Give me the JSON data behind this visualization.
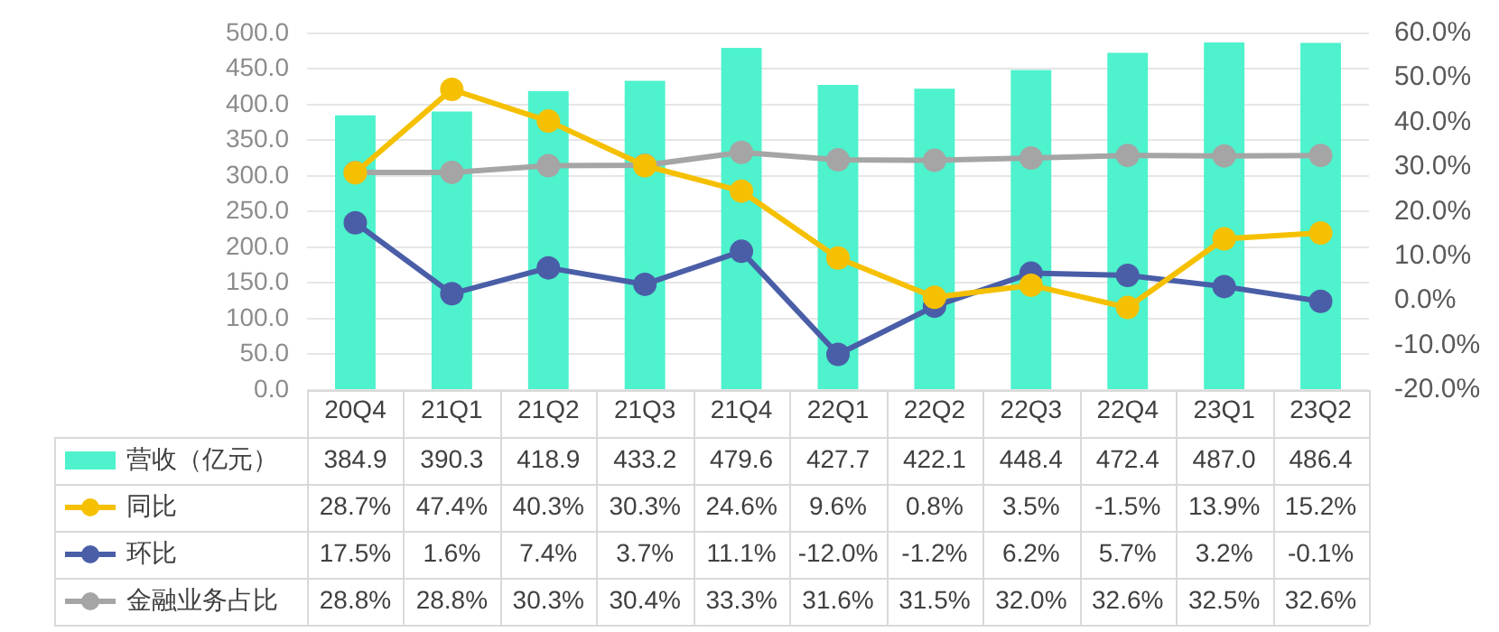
{
  "chart_data": {
    "type": "bar",
    "categories": [
      "20Q4",
      "21Q1",
      "21Q2",
      "21Q3",
      "21Q4",
      "22Q1",
      "22Q2",
      "22Q3",
      "22Q4",
      "23Q1",
      "23Q2"
    ],
    "series": [
      {
        "name": "营收（亿元）",
        "color": "#4ef2cc",
        "values": [
          384.9,
          390.3,
          418.9,
          433.2,
          479.6,
          427.7,
          422.1,
          448.4,
          472.4,
          487.0,
          486.4
        ],
        "value_labels": [
          "384.9",
          "390.3",
          "418.9",
          "433.2",
          "479.6",
          "427.7",
          "422.1",
          "448.4",
          "472.4",
          "487.0",
          "486.4"
        ]
      },
      {
        "name": "同比",
        "type": "line",
        "axis": "y2",
        "color": "#f5c000",
        "values": [
          28.7,
          47.4,
          40.3,
          30.3,
          24.6,
          9.6,
          0.8,
          3.5,
          -1.5,
          13.9,
          15.2
        ],
        "value_labels": [
          "28.7%",
          "47.4%",
          "40.3%",
          "30.3%",
          "24.6%",
          "9.6%",
          "0.8%",
          "3.5%",
          "-1.5%",
          "13.9%",
          "15.2%"
        ]
      },
      {
        "name": "环比",
        "type": "line",
        "axis": "y2",
        "color": "#4a5ea8",
        "values": [
          17.5,
          1.6,
          7.4,
          3.7,
          11.1,
          -12.0,
          -1.2,
          6.2,
          5.7,
          3.2,
          -0.1
        ],
        "value_labels": [
          "17.5%",
          "1.6%",
          "7.4%",
          "3.7%",
          "11.1%",
          "-12.0%",
          "-1.2%",
          "6.2%",
          "5.7%",
          "3.2%",
          "-0.1%"
        ]
      },
      {
        "name": "金融业务占比",
        "type": "line",
        "axis": "y2",
        "color": "#a5a5a5",
        "values": [
          28.8,
          28.8,
          30.3,
          30.4,
          33.3,
          31.6,
          31.5,
          32.0,
          32.6,
          32.5,
          32.6
        ],
        "value_labels": [
          "28.8%",
          "28.8%",
          "30.3%",
          "30.4%",
          "33.3%",
          "31.6%",
          "31.5%",
          "32.0%",
          "32.6%",
          "32.5%",
          "32.6%"
        ]
      }
    ],
    "ylim": [
      0,
      500
    ],
    "yticks": [
      {
        "value": 0,
        "label": "0.0"
      },
      {
        "value": 50,
        "label": "50.0"
      },
      {
        "value": 100,
        "label": "100.0"
      },
      {
        "value": 150,
        "label": "150.0"
      },
      {
        "value": 200,
        "label": "200.0"
      },
      {
        "value": 250,
        "label": "250.0"
      },
      {
        "value": 300,
        "label": "300.0"
      },
      {
        "value": 350,
        "label": "350.0"
      },
      {
        "value": 400,
        "label": "400.0"
      },
      {
        "value": 450,
        "label": "450.0"
      },
      {
        "value": 500,
        "label": "500.0"
      }
    ],
    "y2lim": [
      -20,
      60
    ],
    "y2ticks": [
      {
        "value": -20,
        "label": "-20.0%"
      },
      {
        "value": -10,
        "label": "-10.0%"
      },
      {
        "value": 0,
        "label": "0.0%"
      },
      {
        "value": 10,
        "label": "10.0%"
      },
      {
        "value": 20,
        "label": "20.0%"
      },
      {
        "value": 30,
        "label": "30.0%"
      },
      {
        "value": 40,
        "label": "40.0%"
      },
      {
        "value": 50,
        "label": "50.0%"
      },
      {
        "value": 60,
        "label": "60.0%"
      }
    ],
    "grid": "y",
    "legend": "bottom",
    "marker": "circle"
  }
}
